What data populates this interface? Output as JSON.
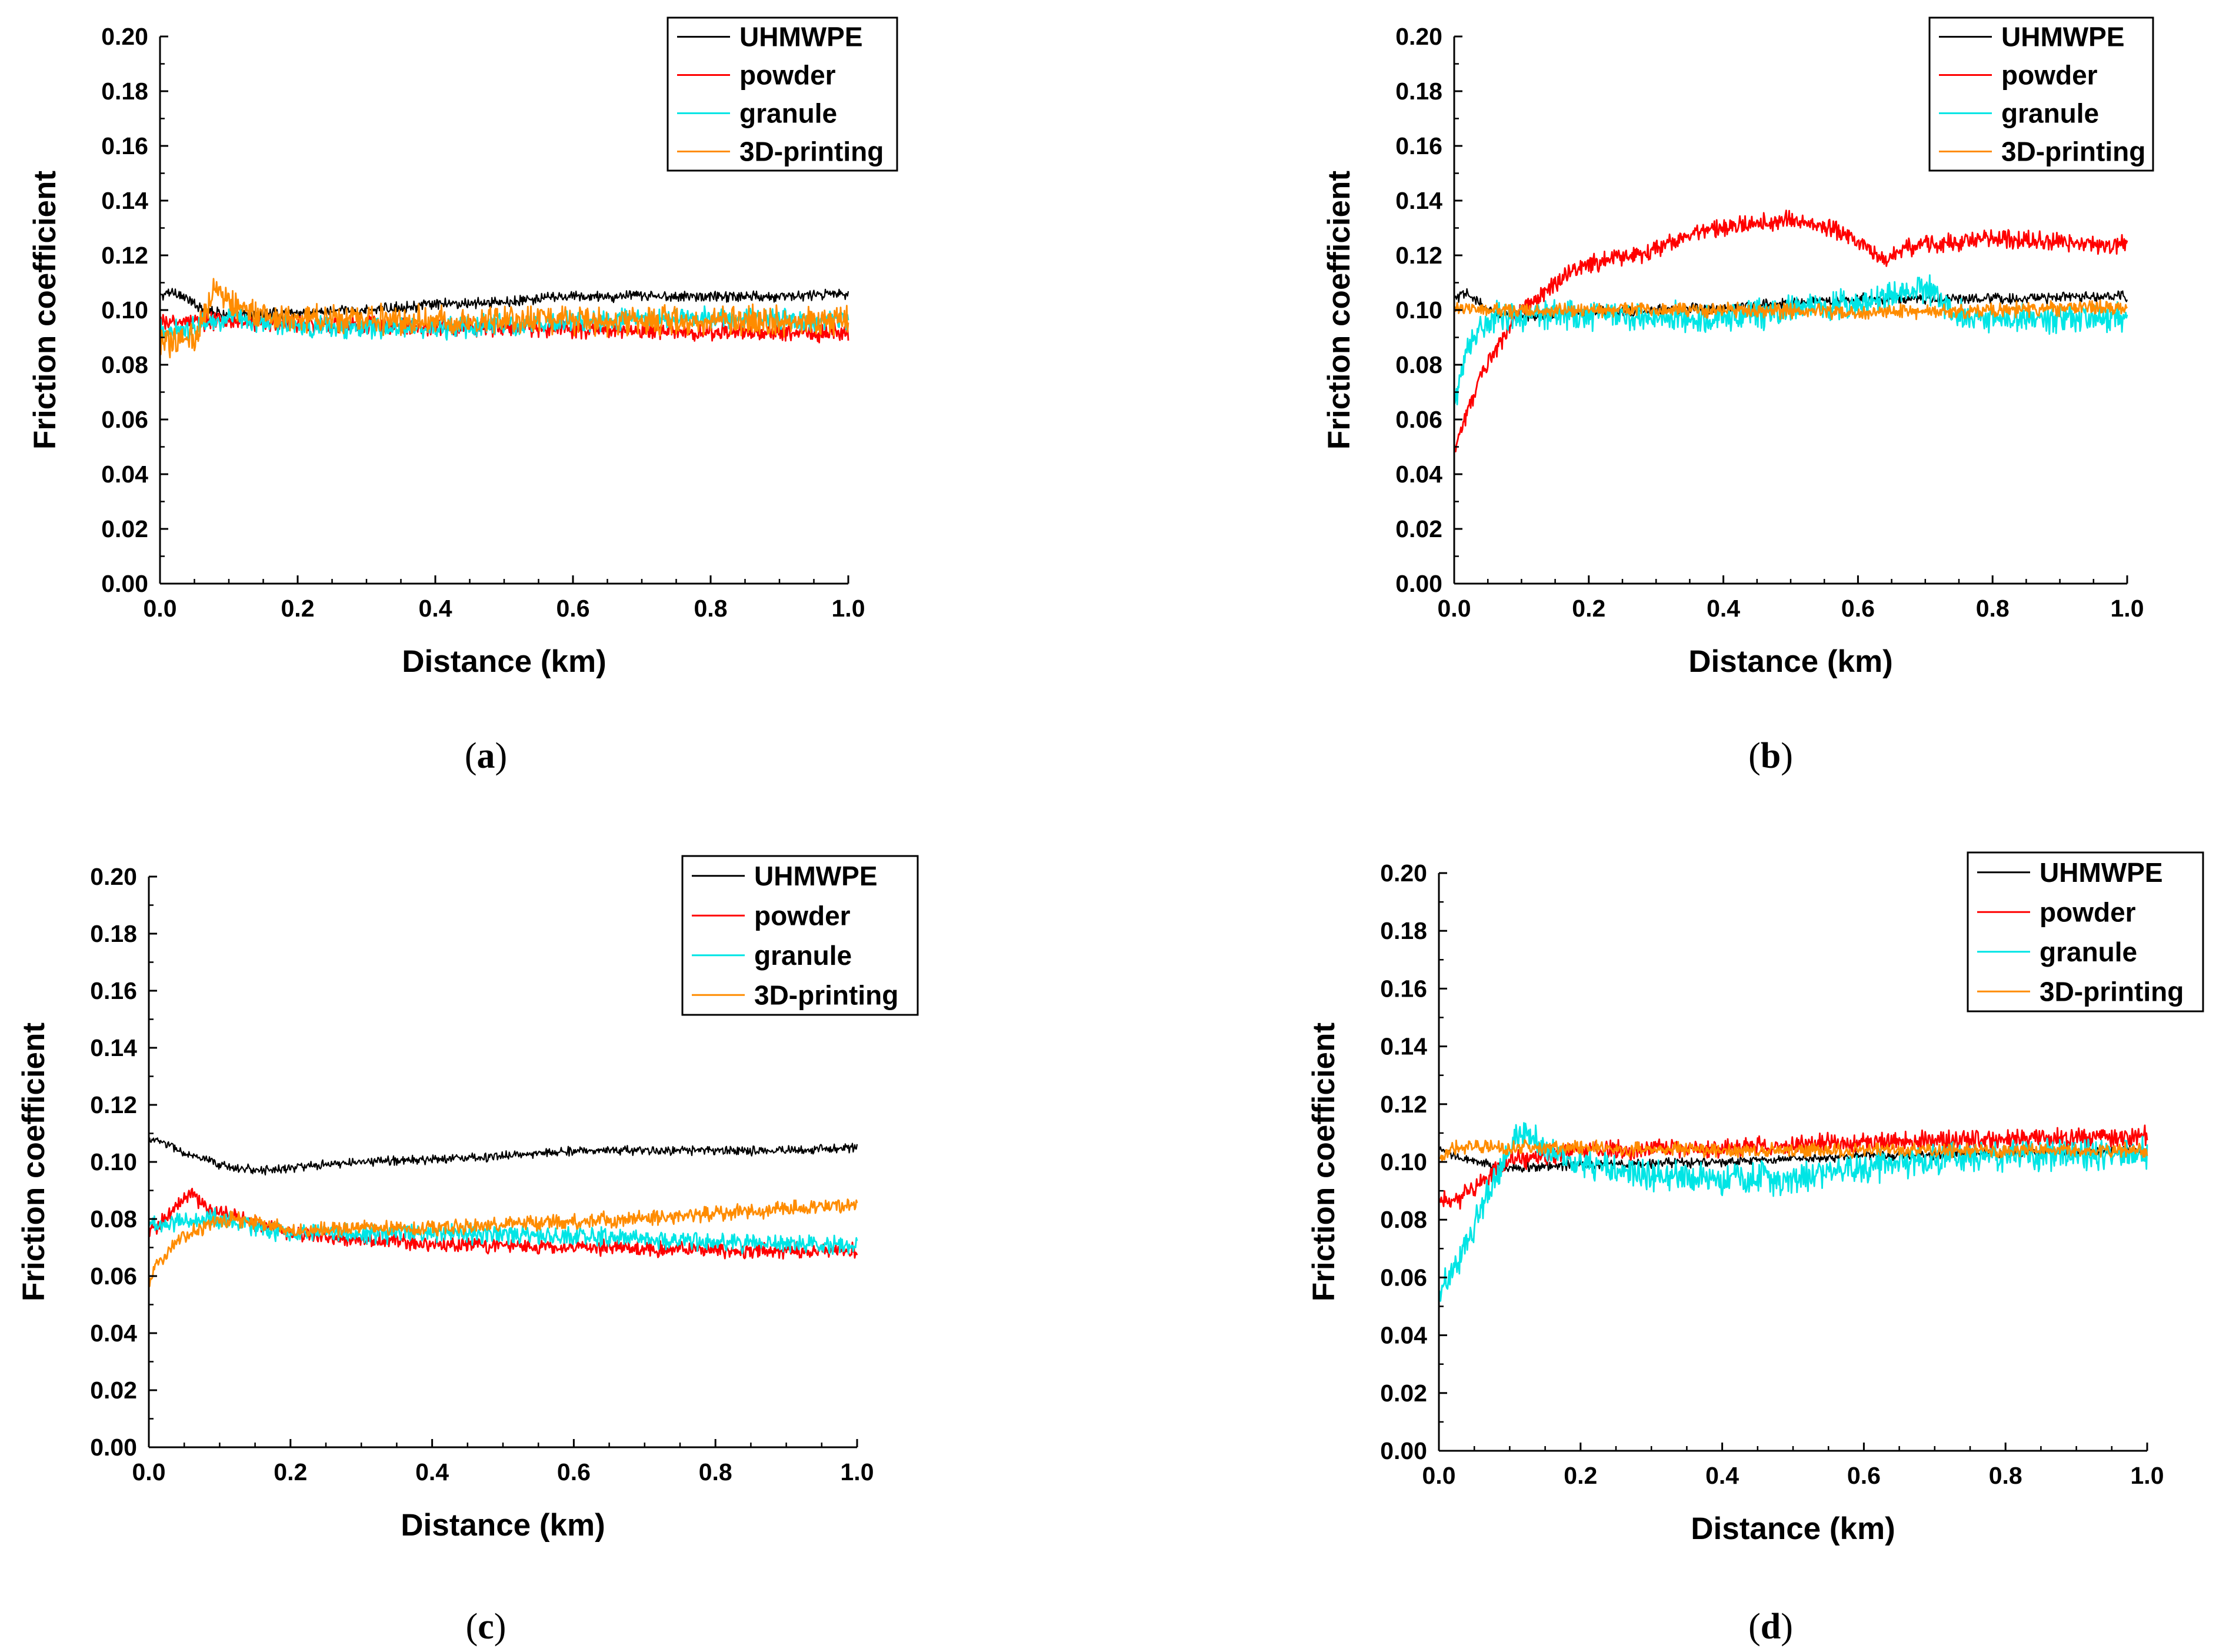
{
  "figure": {
    "panels": [
      "(a)",
      "(b)",
      "(c)",
      "(d)"
    ],
    "colors": {
      "UHMWPE": "#000000",
      "powder": "#ff0000",
      "granule": "#00e5e5",
      "3D-printing": "#ff8c00"
    }
  },
  "chart_data": [
    {
      "type": "line",
      "panel": "(a)",
      "xlabel": "Distance (km)",
      "ylabel": "Friction coefficient",
      "xlim": [
        0.0,
        1.0
      ],
      "ylim": [
        0.0,
        0.2
      ],
      "xticks": [
        "0.0",
        "0.2",
        "0.4",
        "0.6",
        "0.8",
        "1.0"
      ],
      "yticks": [
        "0.00",
        "0.02",
        "0.04",
        "0.06",
        "0.08",
        "0.10",
        "0.12",
        "0.14",
        "0.16",
        "0.18",
        "0.20"
      ],
      "legend": "top-right",
      "series": [
        {
          "name": "UHMWPE",
          "color": "#000000",
          "noise": 0.0015,
          "x": [
            0.0,
            0.02,
            0.05,
            0.1,
            0.2,
            0.3,
            0.4,
            0.5,
            0.6,
            0.7,
            0.8,
            0.9,
            1.0
          ],
          "y": [
            0.105,
            0.107,
            0.102,
            0.098,
            0.099,
            0.1,
            0.102,
            0.103,
            0.105,
            0.105,
            0.105,
            0.105,
            0.106
          ]
        },
        {
          "name": "powder",
          "color": "#ff0000",
          "noise": 0.0025,
          "x": [
            0.0,
            0.05,
            0.1,
            0.2,
            0.4,
            0.6,
            0.8,
            1.0
          ],
          "y": [
            0.095,
            0.096,
            0.096,
            0.095,
            0.094,
            0.093,
            0.092,
            0.092
          ]
        },
        {
          "name": "granule",
          "color": "#00e5e5",
          "noise": 0.003,
          "x": [
            0.0,
            0.05,
            0.1,
            0.2,
            0.4,
            0.6,
            0.8,
            1.0
          ],
          "y": [
            0.092,
            0.094,
            0.097,
            0.094,
            0.093,
            0.096,
            0.097,
            0.096
          ]
        },
        {
          "name": "3D-printing",
          "color": "#ff8c00",
          "noise": 0.004,
          "x": [
            0.0,
            0.05,
            0.08,
            0.1,
            0.15,
            0.2,
            0.4,
            0.6,
            0.8,
            1.0
          ],
          "y": [
            0.088,
            0.09,
            0.108,
            0.103,
            0.097,
            0.097,
            0.096,
            0.096,
            0.096,
            0.096
          ]
        }
      ]
    },
    {
      "type": "line",
      "panel": "(b)",
      "xlabel": "Distance (km)",
      "ylabel": "Friction coefficient",
      "xlim": [
        0.0,
        1.0
      ],
      "ylim": [
        0.0,
        0.2
      ],
      "xticks": [
        "0.0",
        "0.2",
        "0.4",
        "0.6",
        "0.8",
        "1.0"
      ],
      "yticks": [
        "0.00",
        "0.02",
        "0.04",
        "0.06",
        "0.08",
        "0.10",
        "0.12",
        "0.14",
        "0.16",
        "0.18",
        "0.20"
      ],
      "legend": "top-right",
      "series": [
        {
          "name": "UHMWPE",
          "color": "#000000",
          "noise": 0.0015,
          "x": [
            0.0,
            0.02,
            0.05,
            0.1,
            0.2,
            0.4,
            0.6,
            0.8,
            1.0
          ],
          "y": [
            0.104,
            0.106,
            0.1,
            0.098,
            0.099,
            0.101,
            0.104,
            0.104,
            0.105
          ]
        },
        {
          "name": "powder",
          "color": "#ff0000",
          "noise": 0.0025,
          "x": [
            0.0,
            0.03,
            0.06,
            0.1,
            0.15,
            0.2,
            0.3,
            0.35,
            0.4,
            0.5,
            0.55,
            0.6,
            0.64,
            0.66,
            0.7,
            0.8,
            0.9,
            1.0
          ],
          "y": [
            0.05,
            0.07,
            0.085,
            0.1,
            0.11,
            0.117,
            0.122,
            0.128,
            0.13,
            0.133,
            0.131,
            0.125,
            0.118,
            0.122,
            0.124,
            0.126,
            0.125,
            0.124
          ]
        },
        {
          "name": "granule",
          "color": "#00e5e5",
          "noise": 0.004,
          "x": [
            0.0,
            0.02,
            0.05,
            0.1,
            0.2,
            0.4,
            0.6,
            0.7,
            0.75,
            0.8,
            1.0
          ],
          "y": [
            0.065,
            0.088,
            0.097,
            0.098,
            0.098,
            0.097,
            0.102,
            0.108,
            0.098,
            0.097,
            0.097
          ]
        },
        {
          "name": "3D-printing",
          "color": "#ff8c00",
          "noise": 0.002,
          "x": [
            0.0,
            0.2,
            0.4,
            0.6,
            0.8,
            1.0
          ],
          "y": [
            0.1,
            0.1,
            0.1,
            0.099,
            0.1,
            0.101
          ]
        }
      ]
    },
    {
      "type": "line",
      "panel": "(c)",
      "xlabel": "Distance (km)",
      "ylabel": "Friction coefficient",
      "xlim": [
        0.0,
        1.0
      ],
      "ylim": [
        0.0,
        0.2
      ],
      "xticks": [
        "0.0",
        "0.2",
        "0.4",
        "0.6",
        "0.8",
        "1.0"
      ],
      "yticks": [
        "0.00",
        "0.02",
        "0.04",
        "0.06",
        "0.08",
        "0.10",
        "0.12",
        "0.14",
        "0.16",
        "0.18",
        "0.20"
      ],
      "legend": "top-right",
      "series": [
        {
          "name": "UHMWPE",
          "color": "#000000",
          "noise": 0.0012,
          "x": [
            0.0,
            0.02,
            0.05,
            0.1,
            0.15,
            0.2,
            0.3,
            0.4,
            0.5,
            0.6,
            0.7,
            0.8,
            0.9,
            1.0
          ],
          "y": [
            0.108,
            0.107,
            0.103,
            0.099,
            0.097,
            0.098,
            0.1,
            0.101,
            0.102,
            0.104,
            0.104,
            0.104,
            0.104,
            0.105
          ]
        },
        {
          "name": "powder",
          "color": "#ff0000",
          "noise": 0.002,
          "x": [
            0.0,
            0.03,
            0.06,
            0.08,
            0.12,
            0.2,
            0.4,
            0.6,
            0.8,
            1.0
          ],
          "y": [
            0.075,
            0.082,
            0.089,
            0.084,
            0.081,
            0.075,
            0.071,
            0.07,
            0.069,
            0.069
          ]
        },
        {
          "name": "granule",
          "color": "#00e5e5",
          "noise": 0.0025,
          "x": [
            0.0,
            0.05,
            0.1,
            0.2,
            0.4,
            0.6,
            0.8,
            1.0
          ],
          "y": [
            0.078,
            0.079,
            0.08,
            0.075,
            0.075,
            0.074,
            0.072,
            0.071
          ]
        },
        {
          "name": "3D-printing",
          "color": "#ff8c00",
          "noise": 0.002,
          "x": [
            0.0,
            0.02,
            0.05,
            0.1,
            0.15,
            0.2,
            0.4,
            0.6,
            0.8,
            1.0
          ],
          "y": [
            0.058,
            0.067,
            0.074,
            0.08,
            0.079,
            0.076,
            0.077,
            0.079,
            0.082,
            0.085
          ]
        }
      ]
    },
    {
      "type": "line",
      "panel": "(d)",
      "xlabel": "Distance (km)",
      "ylabel": "Friction coefficient",
      "xlim": [
        0.0,
        1.0
      ],
      "ylim": [
        0.0,
        0.2
      ],
      "xticks": [
        "0.0",
        "0.2",
        "0.4",
        "0.6",
        "0.8",
        "1.0"
      ],
      "yticks": [
        "0.00",
        "0.02",
        "0.04",
        "0.06",
        "0.08",
        "0.10",
        "0.12",
        "0.14",
        "0.16",
        "0.18",
        "0.20"
      ],
      "legend": "top-right",
      "series": [
        {
          "name": "UHMWPE",
          "color": "#000000",
          "noise": 0.0012,
          "x": [
            0.0,
            0.05,
            0.1,
            0.2,
            0.4,
            0.6,
            0.8,
            1.0
          ],
          "y": [
            0.104,
            0.1,
            0.098,
            0.099,
            0.1,
            0.102,
            0.103,
            0.104
          ]
        },
        {
          "name": "powder",
          "color": "#ff0000",
          "noise": 0.0025,
          "x": [
            0.0,
            0.03,
            0.06,
            0.1,
            0.2,
            0.4,
            0.6,
            0.8,
            1.0
          ],
          "y": [
            0.088,
            0.087,
            0.093,
            0.1,
            0.104,
            0.105,
            0.107,
            0.108,
            0.109
          ]
        },
        {
          "name": "granule",
          "color": "#00e5e5",
          "noise": 0.004,
          "x": [
            0.0,
            0.02,
            0.05,
            0.08,
            0.1,
            0.12,
            0.15,
            0.2,
            0.3,
            0.5,
            0.6,
            0.7,
            0.8,
            1.0
          ],
          "y": [
            0.055,
            0.062,
            0.078,
            0.095,
            0.105,
            0.11,
            0.105,
            0.1,
            0.095,
            0.094,
            0.098,
            0.101,
            0.102,
            0.103
          ]
        },
        {
          "name": "3D-printing",
          "color": "#ff8c00",
          "noise": 0.0018,
          "x": [
            0.0,
            0.02,
            0.05,
            0.2,
            0.4,
            0.6,
            0.8,
            1.0
          ],
          "y": [
            0.1,
            0.105,
            0.105,
            0.105,
            0.104,
            0.104,
            0.104,
            0.104
          ]
        }
      ]
    }
  ]
}
